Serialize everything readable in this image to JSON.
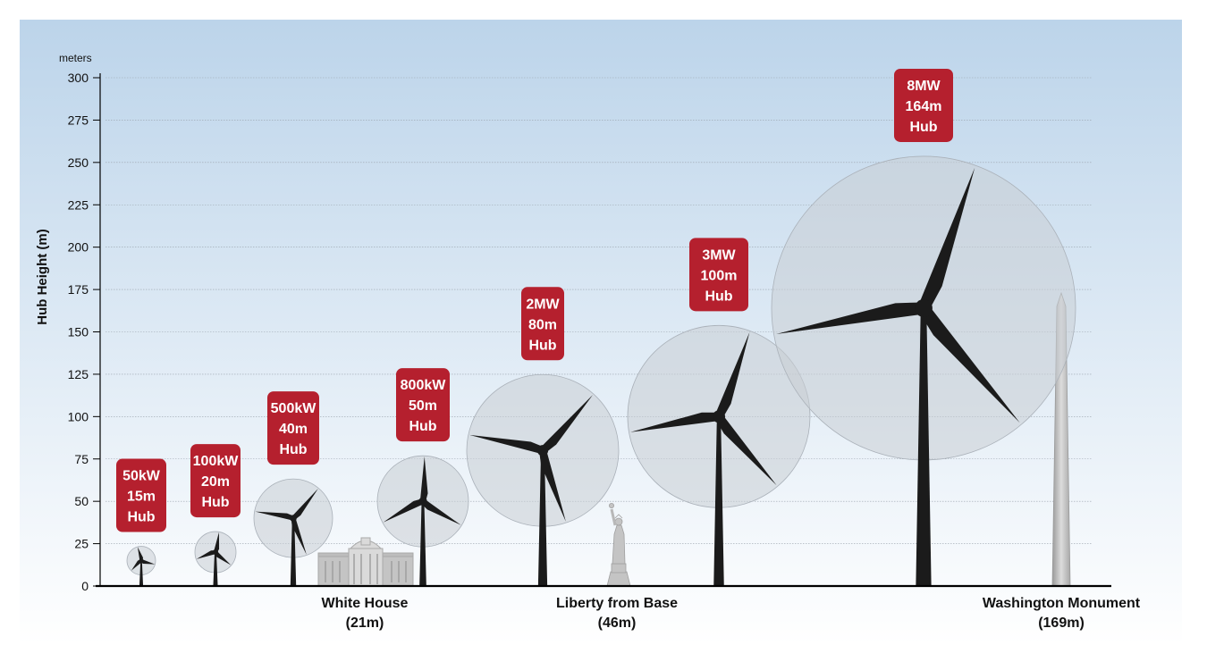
{
  "chart_data": {
    "type": "bar",
    "title": "",
    "xlabel": "",
    "ylabel": "Hub Height (m)",
    "y_units": "meters",
    "ylim": [
      0,
      300
    ],
    "yticks": [
      0,
      25,
      50,
      75,
      100,
      125,
      150,
      175,
      200,
      225,
      250,
      275,
      300
    ],
    "grid": true,
    "turbines": [
      {
        "power": "50kW",
        "hub": 15,
        "rotor_radius": 8,
        "label_lines": [
          "50kW",
          "15m",
          "Hub"
        ]
      },
      {
        "power": "100kW",
        "hub": 20,
        "rotor_radius": 11,
        "label_lines": [
          "100kW",
          "20m",
          "Hub"
        ]
      },
      {
        "power": "500kW",
        "hub": 40,
        "rotor_radius": 22,
        "label_lines": [
          "500kW",
          "40m",
          "Hub"
        ]
      },
      {
        "power": "800kW",
        "hub": 50,
        "rotor_radius": 27,
        "label_lines": [
          "800kW",
          "50m",
          "Hub"
        ]
      },
      {
        "power": "2MW",
        "hub": 80,
        "rotor_radius": 45,
        "label_lines": [
          "2MW",
          "80m",
          "Hub"
        ]
      },
      {
        "power": "3MW",
        "hub": 100,
        "rotor_radius": 54,
        "label_lines": [
          "3MW",
          "100m",
          "Hub"
        ]
      },
      {
        "power": "8MW",
        "hub": 164,
        "rotor_radius": 90,
        "label_lines": [
          "8MW",
          "164m",
          "Hub"
        ]
      }
    ],
    "landmarks": [
      {
        "name": "White House",
        "height": 21,
        "label_lines": [
          "White House",
          "(21m)"
        ]
      },
      {
        "name": "Liberty from Base",
        "height": 46,
        "label_lines": [
          "Liberty from Base",
          "(46m)"
        ]
      },
      {
        "name": "Washington Monument",
        "height": 169,
        "label_lines": [
          "Washington Monument",
          "(169m)"
        ]
      }
    ]
  },
  "colors": {
    "badge": "#b5202e",
    "turbine": "#1b1b1b",
    "rotor_disc": "#c8cdd4",
    "sky_top": "#bcd4ea",
    "sky_bottom": "#ffffff",
    "landmark": "#c4c4c4"
  }
}
